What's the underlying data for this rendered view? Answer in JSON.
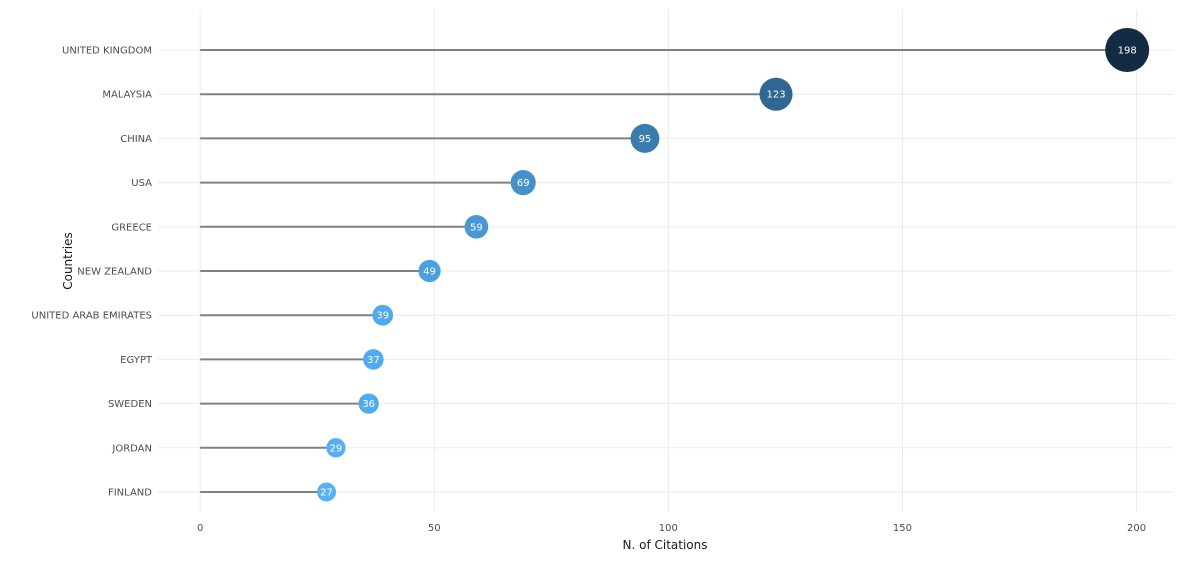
{
  "chart_data": {
    "type": "lollipop",
    "xlabel": "N. of Citations",
    "ylabel": "Countries",
    "xlim": [
      -9,
      208
    ],
    "x_ticks": [
      0,
      50,
      100,
      150,
      200
    ],
    "grid": true,
    "legend": "none",
    "categories": [
      "UNITED KINGDOM",
      "MALAYSIA",
      "CHINA",
      "USA",
      "GREECE",
      "NEW ZEALAND",
      "UNITED ARAB EMIRATES",
      "EGYPT",
      "SWEDEN",
      "JORDAN",
      "FINLAND"
    ],
    "values": [
      198,
      123,
      95,
      69,
      59,
      49,
      39,
      37,
      36,
      29,
      27
    ],
    "color_scale": {
      "low": "#56b1f7",
      "high": "#132b43"
    }
  }
}
